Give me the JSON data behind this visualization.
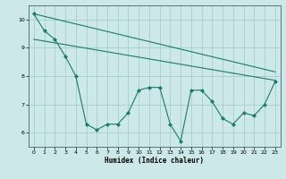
{
  "background_color": "#cce8e8",
  "line_color": "#1a7a6e",
  "grid_color": "#aacccc",
  "xlabel": "Humidex (Indice chaleur)",
  "xlim": [
    -0.5,
    23.5
  ],
  "ylim": [
    5.5,
    10.5
  ],
  "yticks": [
    6,
    7,
    8,
    9,
    10
  ],
  "xticks": [
    0,
    1,
    2,
    3,
    4,
    5,
    6,
    7,
    8,
    9,
    10,
    11,
    12,
    13,
    14,
    15,
    16,
    17,
    18,
    19,
    20,
    21,
    22,
    23
  ],
  "series1_x": [
    0,
    1,
    2,
    3,
    4,
    5,
    6,
    7,
    8,
    9,
    10,
    11,
    12,
    13,
    14,
    15,
    16,
    17,
    18,
    19,
    20,
    21,
    22,
    23
  ],
  "series1_y": [
    10.2,
    9.6,
    9.3,
    8.7,
    8.0,
    6.3,
    6.1,
    6.3,
    6.3,
    6.7,
    7.5,
    7.6,
    7.6,
    6.3,
    5.7,
    7.5,
    7.5,
    7.1,
    6.5,
    6.3,
    6.7,
    6.6,
    7.0,
    7.8
  ],
  "trend1_start_x": 0,
  "trend1_start_y": 10.2,
  "trend1_end_x": 23,
  "trend1_end_y": 8.15,
  "trend2_start_x": 0,
  "trend2_start_y": 9.3,
  "trend2_end_x": 23,
  "trend2_end_y": 7.85
}
